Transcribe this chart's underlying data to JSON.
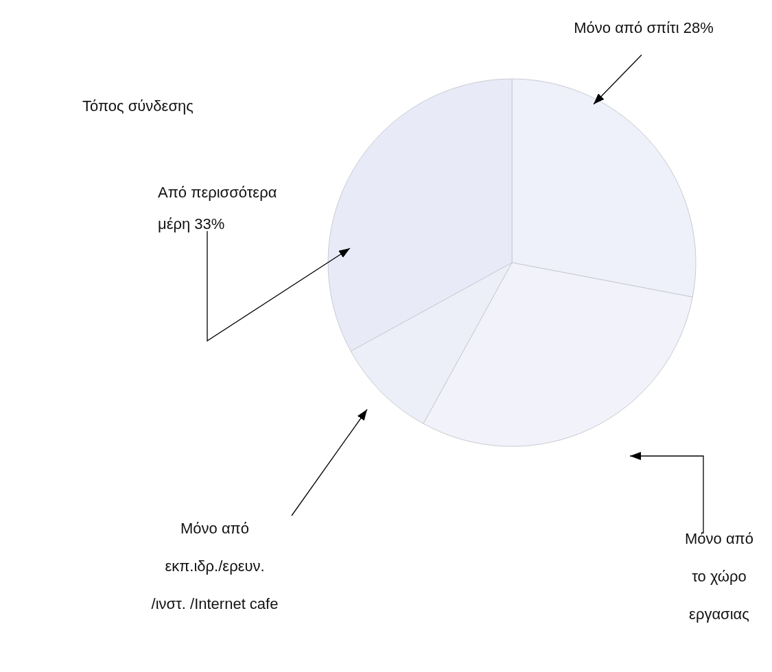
{
  "chart_data": {
    "type": "pie",
    "title": "Τόπος σύνδεσης",
    "categories": [
      "Μόνο από σπίτι",
      "Μόνο από το χώρο εργασιας",
      "Μόνο από εκπ.ιδρ./ερευν. /ινστ. /Internet cafe",
      "Από περισσότερα μέρη"
    ],
    "values": [
      28,
      30,
      9,
      33
    ],
    "value_labels": [
      "28%",
      null,
      null,
      "33%"
    ],
    "colors": [
      "#eef0fa",
      "#f1f2fa",
      "#eceef8",
      "#e8ebf7"
    ]
  }
}
